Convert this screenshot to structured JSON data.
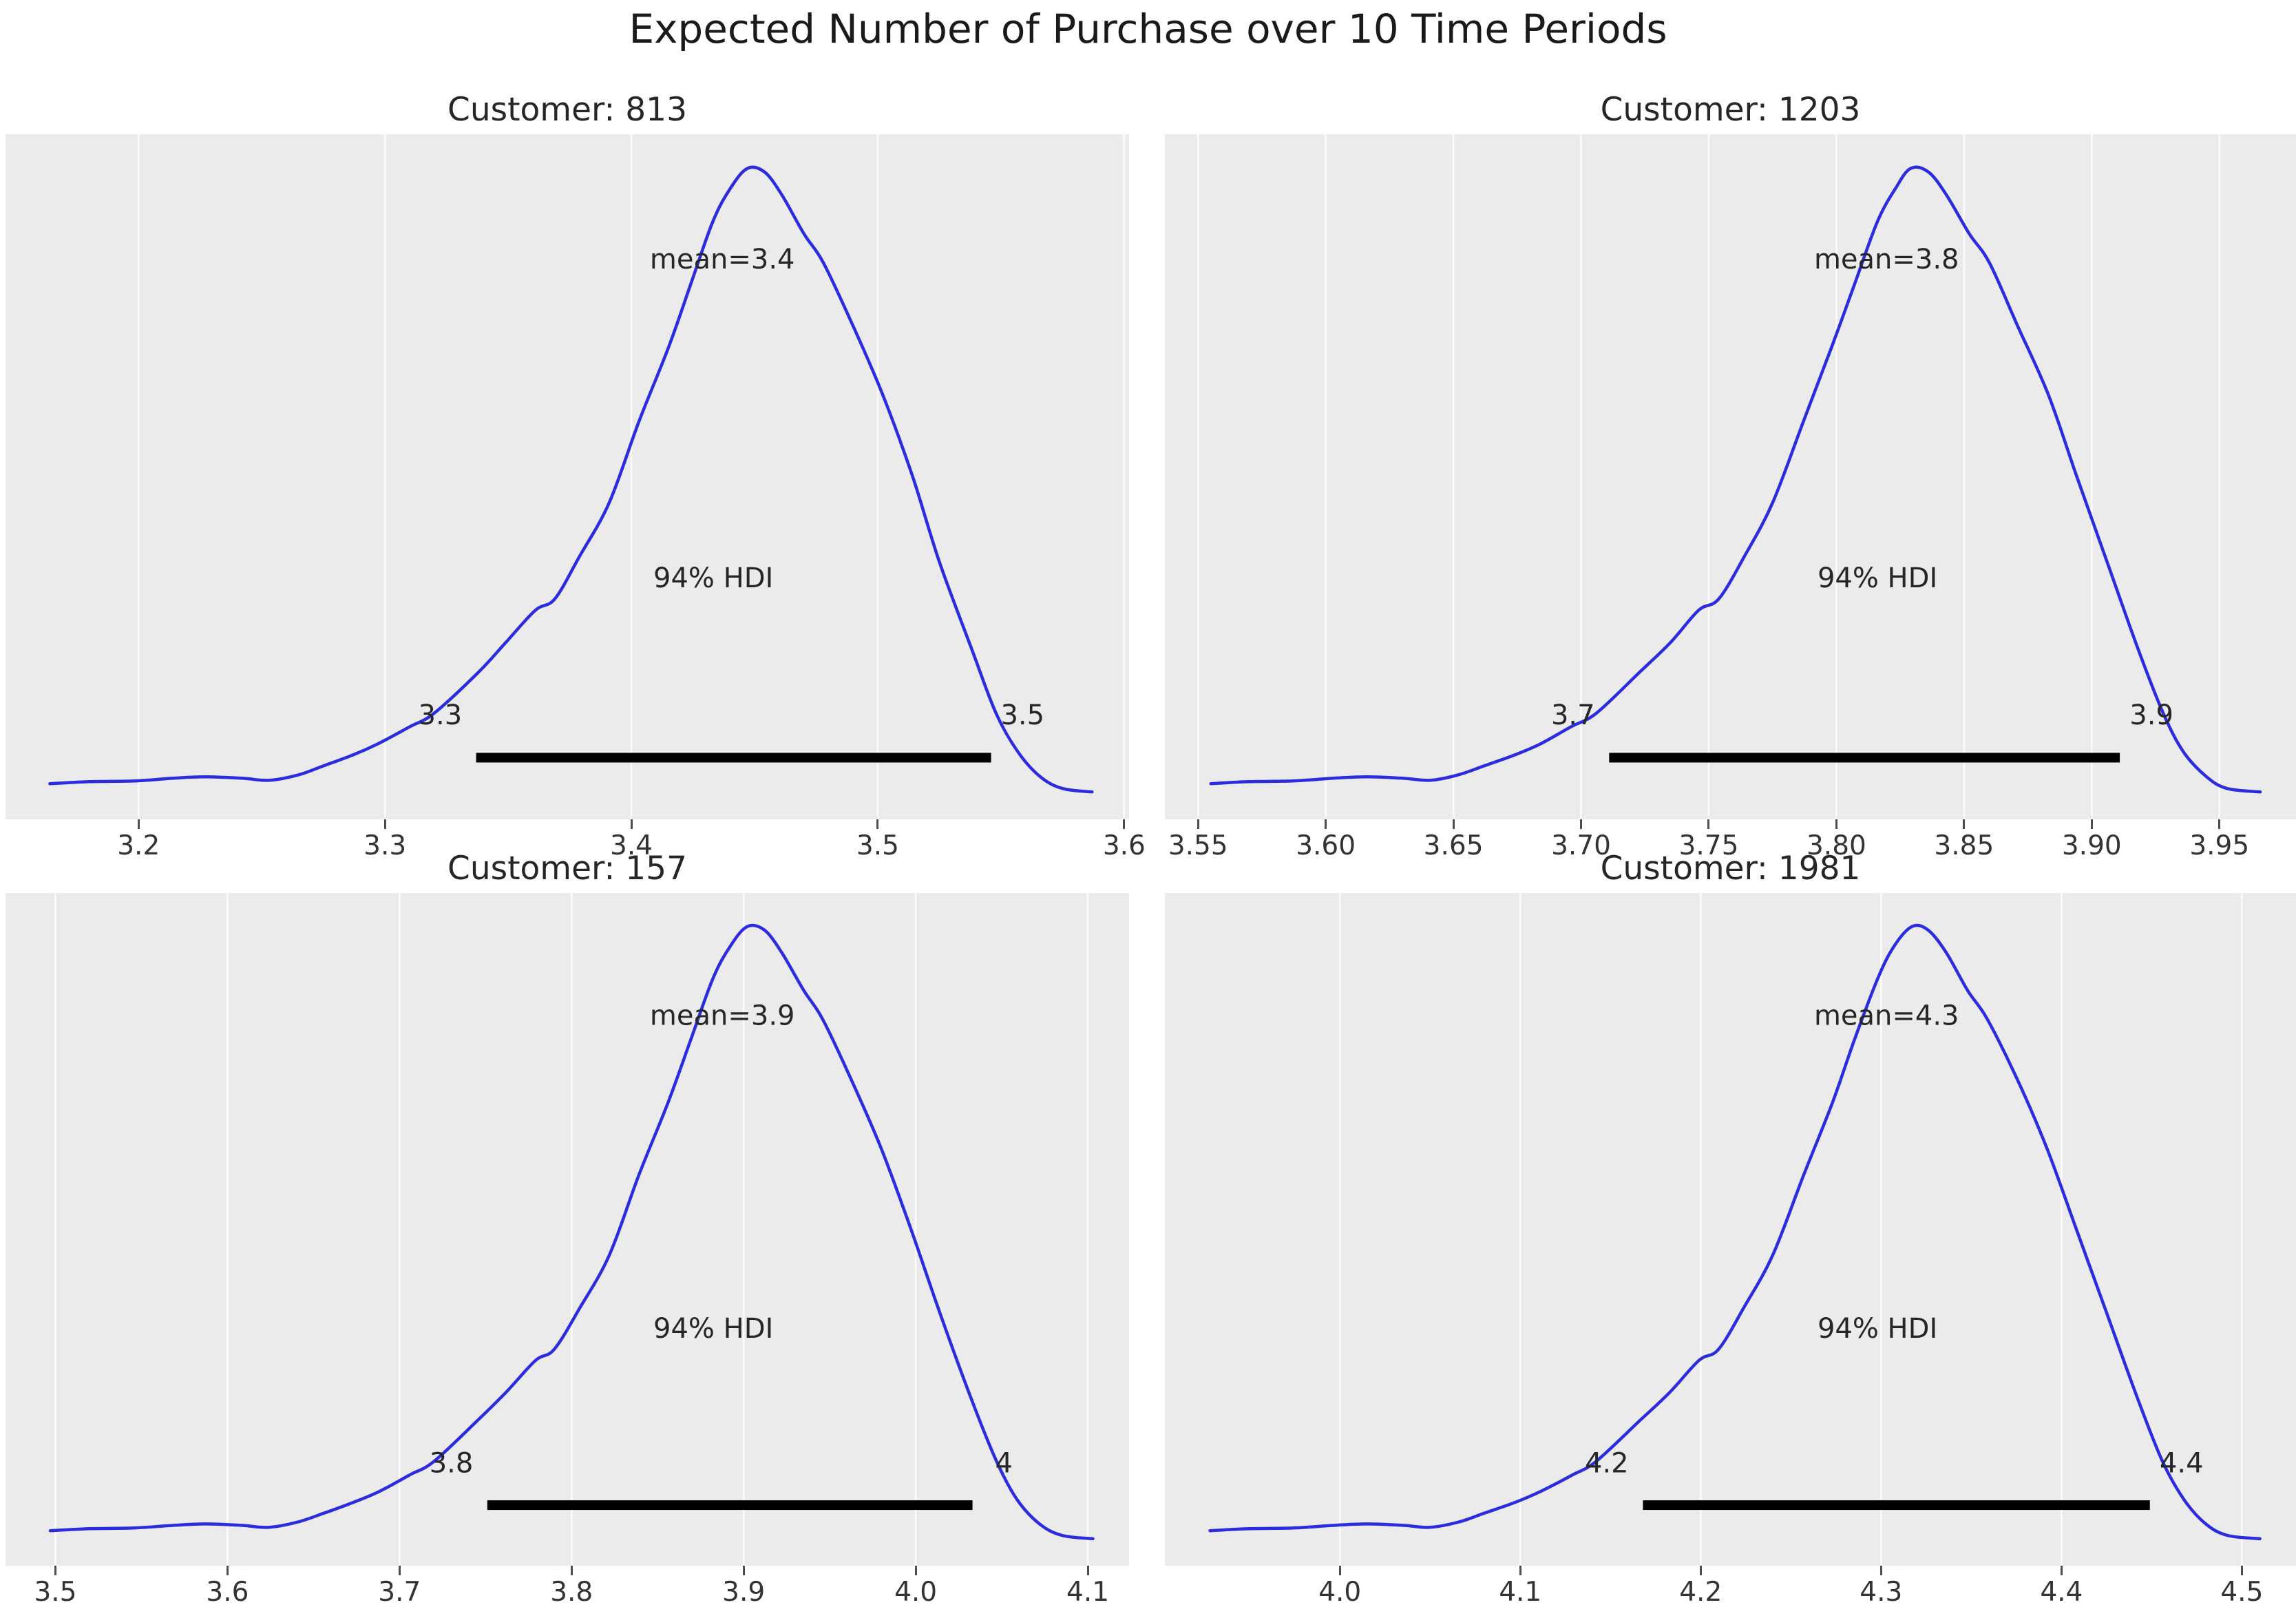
{
  "figure": {
    "title": "Expected Number of Purchase over 10 Time Periods",
    "background_color": "#ffffff",
    "panel_color": "#ebebeb",
    "grid_color": "#fcfcfc",
    "curve_color": "#2b2be0",
    "hdi_bar_color": "#000000",
    "text_color": "#262626",
    "tick_color": "#333333"
  },
  "chart_data": [
    {
      "type": "line",
      "subplot": "top-left",
      "title": "Customer: 813",
      "mean": 3.4,
      "mean_label": "mean=3.4",
      "hdi_text": "94% HDI",
      "hdi_interval": [
        3.337,
        3.546
      ],
      "hdi_bound_labels": [
        "3.3",
        "3.5"
      ],
      "xlim": [
        3.146,
        3.602
      ],
      "xticks": [
        3.2,
        3.3,
        3.4,
        3.5,
        3.6
      ],
      "xtick_labels": [
        "3.2",
        "3.3",
        "3.4",
        "3.5",
        "3.6"
      ],
      "grid": "vertical-white",
      "legend": "none",
      "curve": {
        "x": [
          3.164,
          3.18,
          3.198,
          3.214,
          3.227,
          3.242,
          3.253,
          3.265,
          3.275,
          3.287,
          3.297,
          3.31,
          3.32,
          3.338,
          3.349,
          3.361,
          3.369,
          3.379,
          3.391,
          3.403,
          3.415,
          3.424,
          3.433,
          3.44,
          3.447,
          3.454,
          3.461,
          3.47,
          3.478,
          3.49,
          3.502,
          3.514,
          3.525,
          3.538,
          3.548,
          3.557,
          3.566,
          3.575,
          3.587
        ],
        "density": [
          0.052,
          0.055,
          0.056,
          0.06,
          0.062,
          0.06,
          0.057,
          0.065,
          0.078,
          0.094,
          0.11,
          0.135,
          0.155,
          0.215,
          0.258,
          0.305,
          0.322,
          0.384,
          0.462,
          0.58,
          0.688,
          0.78,
          0.872,
          0.92,
          0.95,
          0.945,
          0.912,
          0.855,
          0.812,
          0.72,
          0.62,
          0.502,
          0.376,
          0.25,
          0.155,
          0.098,
          0.062,
          0.045,
          0.04
        ]
      }
    },
    {
      "type": "line",
      "subplot": "top-right",
      "title": "Customer: 1203",
      "mean": 3.8,
      "mean_label": "mean=3.8",
      "hdi_text": "94% HDI",
      "hdi_interval": [
        3.711,
        3.911
      ],
      "hdi_bound_labels": [
        "3.7",
        "3.9"
      ],
      "xlim": [
        3.537,
        3.98
      ],
      "xticks": [
        3.55,
        3.6,
        3.65,
        3.7,
        3.75,
        3.8,
        3.85,
        3.9,
        3.95
      ],
      "xtick_labels": [
        "3.55",
        "3.60",
        "3.65",
        "3.70",
        "3.75",
        "3.80",
        "3.85",
        "3.90",
        "3.95"
      ],
      "grid": "vertical-white",
      "legend": "none",
      "curve": {
        "x": [
          3.555,
          3.57,
          3.587,
          3.603,
          3.616,
          3.63,
          3.641,
          3.652,
          3.662,
          3.674,
          3.684,
          3.696,
          3.706,
          3.723,
          3.735,
          3.746,
          3.754,
          3.764,
          3.775,
          3.787,
          3.798,
          3.807,
          3.816,
          3.823,
          3.829,
          3.836,
          3.843,
          3.852,
          3.86,
          3.871,
          3.883,
          3.894,
          3.906,
          3.918,
          3.928,
          3.936,
          3.945,
          3.953,
          3.966
        ],
        "density": [
          0.052,
          0.055,
          0.056,
          0.06,
          0.062,
          0.06,
          0.057,
          0.065,
          0.078,
          0.094,
          0.11,
          0.135,
          0.155,
          0.215,
          0.258,
          0.305,
          0.322,
          0.384,
          0.462,
          0.58,
          0.688,
          0.78,
          0.872,
          0.92,
          0.95,
          0.945,
          0.912,
          0.855,
          0.812,
          0.72,
          0.62,
          0.502,
          0.376,
          0.25,
          0.155,
          0.098,
          0.062,
          0.045,
          0.04
        ]
      }
    },
    {
      "type": "line",
      "subplot": "bottom-left",
      "title": "Customer: 157",
      "mean": 3.9,
      "mean_label": "mean=3.9",
      "hdi_text": "94% HDI",
      "hdi_interval": [
        3.751,
        4.033
      ],
      "hdi_bound_labels": [
        "3.8",
        "4"
      ],
      "xlim": [
        3.471,
        4.124
      ],
      "xticks": [
        3.5,
        3.6,
        3.7,
        3.8,
        3.9,
        4.0,
        4.1
      ],
      "xtick_labels": [
        "3.5",
        "3.6",
        "3.7",
        "3.8",
        "3.9",
        "4.0",
        "4.1"
      ],
      "grid": "vertical-white",
      "legend": "none",
      "curve": {
        "x": [
          3.497,
          3.52,
          3.545,
          3.569,
          3.587,
          3.608,
          3.624,
          3.641,
          3.656,
          3.673,
          3.688,
          3.706,
          3.72,
          3.745,
          3.762,
          3.779,
          3.79,
          3.805,
          3.822,
          3.839,
          3.856,
          3.869,
          3.882,
          3.892,
          3.902,
          3.912,
          3.922,
          3.935,
          3.946,
          3.963,
          3.98,
          3.997,
          4.014,
          4.032,
          4.047,
          4.059,
          4.072,
          4.085,
          4.103
        ],
        "density": [
          0.052,
          0.055,
          0.056,
          0.06,
          0.062,
          0.06,
          0.057,
          0.065,
          0.078,
          0.094,
          0.11,
          0.135,
          0.155,
          0.215,
          0.258,
          0.305,
          0.322,
          0.384,
          0.462,
          0.58,
          0.688,
          0.78,
          0.872,
          0.92,
          0.95,
          0.945,
          0.912,
          0.855,
          0.812,
          0.72,
          0.62,
          0.502,
          0.376,
          0.25,
          0.155,
          0.098,
          0.062,
          0.045,
          0.04
        ]
      }
    },
    {
      "type": "line",
      "subplot": "bottom-right",
      "title": "Customer: 1981",
      "mean": 4.3,
      "mean_label": "mean=4.3",
      "hdi_text": "94% HDI",
      "hdi_interval": [
        4.168,
        4.449
      ],
      "hdi_bound_labels": [
        "4.2",
        "4.4"
      ],
      "xlim": [
        3.903,
        4.53
      ],
      "xticks": [
        4.0,
        4.1,
        4.2,
        4.3,
        4.4,
        4.5
      ],
      "xtick_labels": [
        "4.0",
        "4.1",
        "4.2",
        "4.3",
        "4.4",
        "4.5"
      ],
      "grid": "vertical-white",
      "legend": "none",
      "curve": {
        "x": [
          3.928,
          3.95,
          3.974,
          3.997,
          4.015,
          4.035,
          4.05,
          4.066,
          4.08,
          4.097,
          4.111,
          4.129,
          4.142,
          4.166,
          4.183,
          4.199,
          4.21,
          4.224,
          4.24,
          4.257,
          4.273,
          4.285,
          4.298,
          4.307,
          4.317,
          4.326,
          4.336,
          4.348,
          4.359,
          4.376,
          4.392,
          4.408,
          4.425,
          4.442,
          4.456,
          4.468,
          4.48,
          4.492,
          4.51
        ],
        "density": [
          0.052,
          0.055,
          0.056,
          0.06,
          0.062,
          0.06,
          0.057,
          0.065,
          0.078,
          0.094,
          0.11,
          0.135,
          0.155,
          0.215,
          0.258,
          0.305,
          0.322,
          0.384,
          0.462,
          0.58,
          0.688,
          0.78,
          0.872,
          0.92,
          0.95,
          0.945,
          0.912,
          0.855,
          0.812,
          0.72,
          0.62,
          0.502,
          0.376,
          0.25,
          0.155,
          0.098,
          0.062,
          0.045,
          0.04
        ]
      }
    }
  ]
}
